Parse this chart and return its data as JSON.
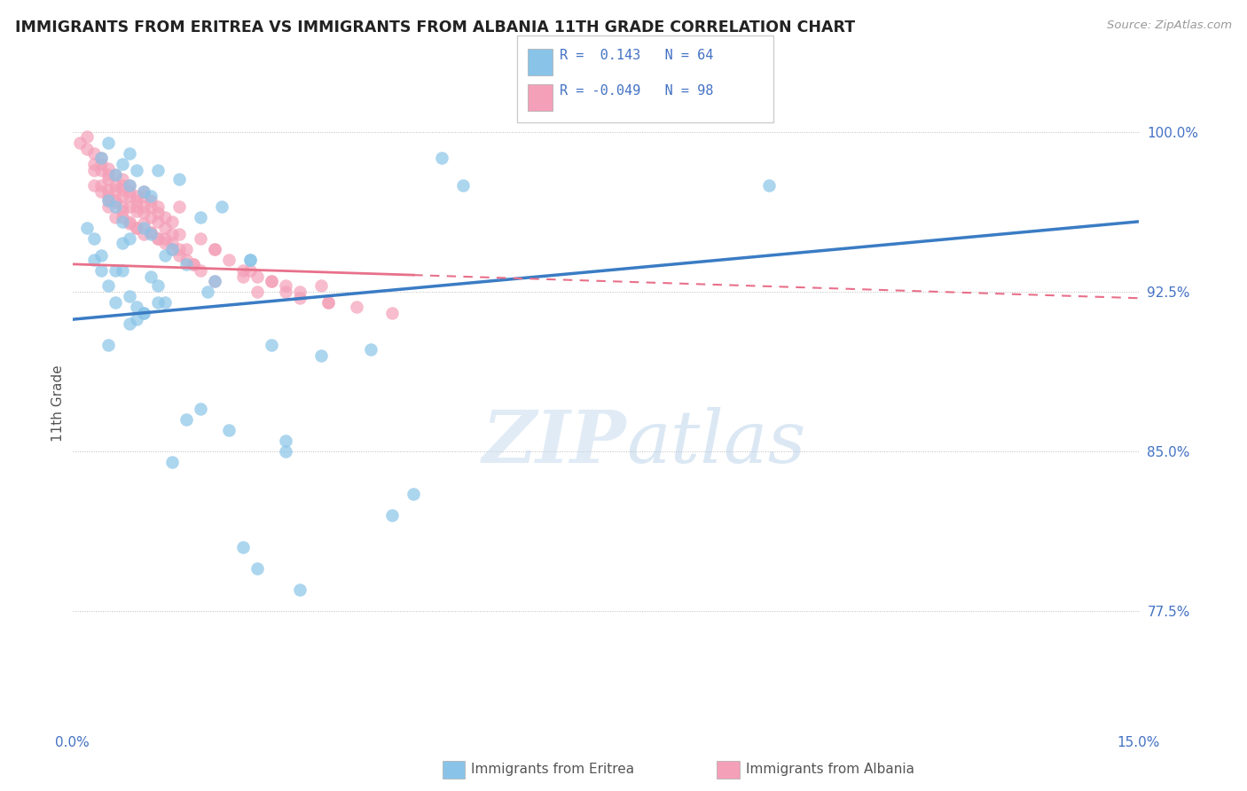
{
  "title": "IMMIGRANTS FROM ERITREA VS IMMIGRANTS FROM ALBANIA 11TH GRADE CORRELATION CHART",
  "source": "Source: ZipAtlas.com",
  "ylabel": "11th Grade",
  "y_ticks": [
    77.5,
    85.0,
    92.5,
    100.0
  ],
  "x_min": 0.0,
  "x_max": 15.0,
  "y_min": 72.0,
  "y_max": 102.5,
  "legend_blue_R": "0.143",
  "legend_blue_N": "64",
  "legend_pink_R": "-0.049",
  "legend_pink_N": "98",
  "blue_color": "#89C4E8",
  "pink_color": "#F4A0B8",
  "blue_line_color": "#3A7CC4",
  "pink_line_color": "#E8708A",
  "blue_line_y0": 91.2,
  "blue_line_y1": 95.8,
  "pink_line_y0": 93.8,
  "pink_line_y1": 92.2,
  "pink_solid_xmax": 4.8,
  "blue_scatter_x": [
    0.3,
    0.4,
    0.5,
    0.5,
    0.6,
    0.6,
    0.6,
    0.7,
    0.7,
    0.7,
    0.8,
    0.8,
    0.8,
    0.8,
    0.9,
    0.9,
    1.0,
    1.0,
    1.0,
    1.1,
    1.1,
    1.2,
    1.2,
    1.3,
    1.3,
    1.4,
    1.5,
    1.6,
    1.8,
    1.9,
    2.0,
    2.1,
    2.2,
    2.4,
    2.5,
    2.6,
    2.8,
    3.0,
    3.2,
    3.5,
    4.2,
    5.2,
    5.5,
    0.2,
    0.3,
    0.4,
    0.4,
    0.5,
    0.5,
    0.6,
    0.7,
    0.8,
    0.9,
    1.0,
    1.1,
    1.2,
    1.4,
    2.5,
    3.0,
    1.8,
    4.8,
    9.8,
    4.5,
    1.6
  ],
  "blue_scatter_y": [
    95.0,
    98.8,
    96.8,
    99.5,
    98.0,
    96.5,
    93.5,
    98.5,
    95.8,
    94.8,
    99.0,
    97.5,
    95.0,
    92.3,
    98.2,
    91.8,
    97.2,
    95.5,
    91.5,
    97.0,
    95.2,
    98.2,
    92.8,
    94.2,
    92.0,
    94.5,
    97.8,
    93.8,
    96.0,
    92.5,
    93.0,
    96.5,
    86.0,
    80.5,
    94.0,
    79.5,
    90.0,
    85.0,
    78.5,
    89.5,
    89.8,
    98.8,
    97.5,
    95.5,
    94.0,
    94.2,
    93.5,
    90.0,
    92.8,
    92.0,
    93.5,
    91.0,
    91.2,
    91.5,
    93.2,
    92.0,
    84.5,
    94.0,
    85.5,
    87.0,
    83.0,
    97.5,
    82.0,
    86.5
  ],
  "pink_scatter_x": [
    0.1,
    0.2,
    0.2,
    0.3,
    0.3,
    0.3,
    0.4,
    0.4,
    0.4,
    0.4,
    0.5,
    0.5,
    0.5,
    0.5,
    0.5,
    0.6,
    0.6,
    0.6,
    0.6,
    0.7,
    0.7,
    0.7,
    0.7,
    0.7,
    0.8,
    0.8,
    0.8,
    0.8,
    0.9,
    0.9,
    0.9,
    0.9,
    1.0,
    1.0,
    1.0,
    1.0,
    1.1,
    1.1,
    1.1,
    1.2,
    1.2,
    1.2,
    1.3,
    1.3,
    1.4,
    1.4,
    1.5,
    1.5,
    1.6,
    1.7,
    1.8,
    2.0,
    2.2,
    2.4,
    2.5,
    2.6,
    2.8,
    3.0,
    3.2,
    3.5,
    3.6,
    4.0,
    4.5,
    0.3,
    0.4,
    0.5,
    0.6,
    0.7,
    0.8,
    0.9,
    1.0,
    1.1,
    1.2,
    1.3,
    1.4,
    1.5,
    1.6,
    1.8,
    2.0,
    2.4,
    2.8,
    3.0,
    0.5,
    0.6,
    0.7,
    0.8,
    0.9,
    1.0,
    1.1,
    1.2,
    1.3,
    1.5,
    2.0,
    3.2,
    1.4,
    1.7,
    2.6,
    3.6
  ],
  "pink_scatter_y": [
    99.5,
    99.8,
    99.2,
    99.0,
    98.5,
    97.5,
    98.8,
    98.5,
    98.2,
    97.2,
    98.3,
    98.0,
    97.8,
    97.0,
    96.5,
    98.0,
    97.5,
    97.3,
    96.8,
    97.8,
    97.5,
    97.3,
    97.0,
    96.5,
    97.5,
    97.2,
    97.0,
    96.5,
    97.0,
    96.8,
    96.5,
    96.3,
    97.2,
    97.0,
    96.5,
    96.2,
    96.8,
    96.5,
    96.0,
    96.5,
    96.2,
    95.8,
    96.0,
    95.5,
    95.8,
    95.2,
    96.5,
    95.2,
    94.5,
    93.8,
    95.0,
    94.5,
    94.0,
    93.2,
    93.5,
    93.2,
    93.0,
    92.8,
    92.5,
    92.8,
    92.0,
    91.8,
    91.5,
    98.2,
    97.5,
    96.8,
    96.0,
    96.3,
    95.7,
    95.5,
    95.2,
    95.3,
    95.0,
    94.8,
    94.8,
    94.2,
    94.0,
    93.5,
    93.0,
    93.5,
    93.0,
    92.5,
    97.3,
    96.7,
    96.0,
    95.8,
    95.5,
    95.7,
    95.3,
    95.0,
    95.0,
    94.5,
    94.5,
    92.2,
    94.5,
    93.8,
    92.5,
    92.0
  ]
}
